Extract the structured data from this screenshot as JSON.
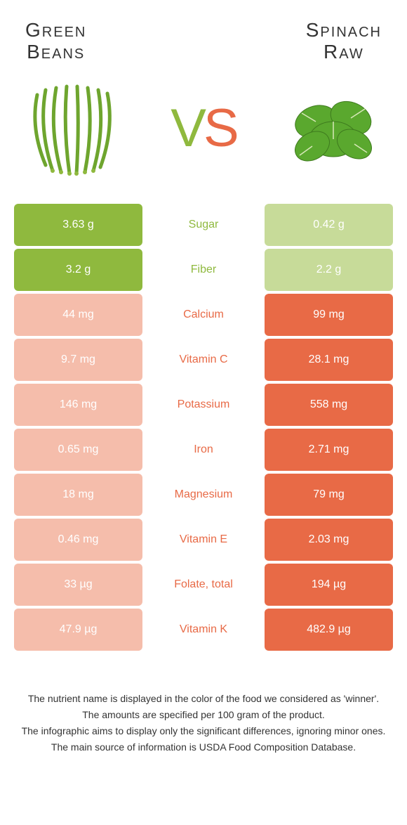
{
  "header": {
    "left_line1": "Green",
    "left_line2": "Beans",
    "right_line1": "Spinach",
    "right_line2": "Raw"
  },
  "vs_v": "V",
  "vs_s": "S",
  "colors": {
    "green_win": "#8fb93e",
    "green_lose": "#c7db99",
    "orange_win": "#e86a46",
    "orange_lose": "#f5bdab",
    "bg": "#ffffff"
  },
  "rows": [
    {
      "nutrient": "Sugar",
      "left": "3.63 g",
      "right": "0.42 g",
      "winner": "left"
    },
    {
      "nutrient": "Fiber",
      "left": "3.2 g",
      "right": "2.2 g",
      "winner": "left"
    },
    {
      "nutrient": "Calcium",
      "left": "44 mg",
      "right": "99 mg",
      "winner": "right"
    },
    {
      "nutrient": "Vitamin C",
      "left": "9.7 mg",
      "right": "28.1 mg",
      "winner": "right"
    },
    {
      "nutrient": "Potassium",
      "left": "146 mg",
      "right": "558 mg",
      "winner": "right"
    },
    {
      "nutrient": "Iron",
      "left": "0.65 mg",
      "right": "2.71 mg",
      "winner": "right"
    },
    {
      "nutrient": "Magnesium",
      "left": "18 mg",
      "right": "79 mg",
      "winner": "right"
    },
    {
      "nutrient": "Vitamin E",
      "left": "0.46 mg",
      "right": "2.03 mg",
      "winner": "right"
    },
    {
      "nutrient": "Folate, total",
      "left": "33 µg",
      "right": "194 µg",
      "winner": "right"
    },
    {
      "nutrient": "Vitamin K",
      "left": "47.9 µg",
      "right": "482.9 µg",
      "winner": "right"
    }
  ],
  "footnotes": [
    "The nutrient name is displayed in the color of the food we considered as 'winner'.",
    "The amounts are specified per 100 gram of the product.",
    "The infographic aims to display only the significant differences, ignoring minor ones.",
    "The main source of information is USDA Food Composition Database."
  ]
}
